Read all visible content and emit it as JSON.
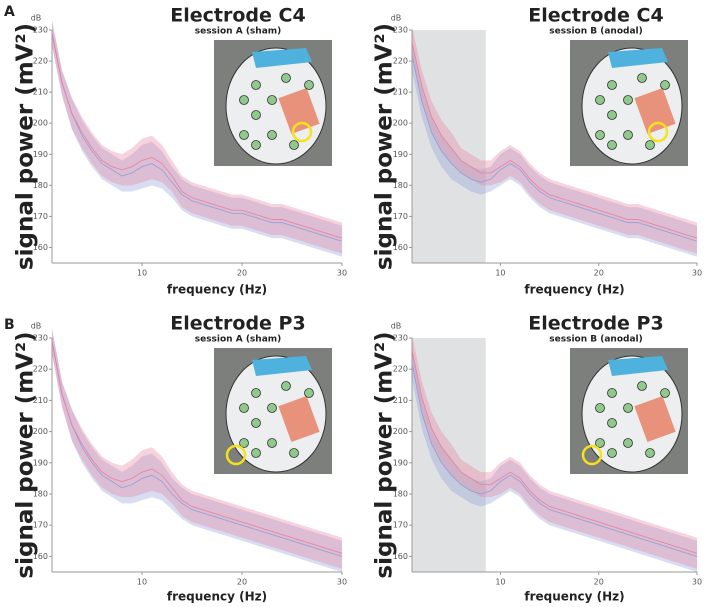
{
  "panels": [
    "A",
    "B"
  ],
  "chart_data": [
    {
      "type": "line",
      "title": "Electrode C4",
      "subtitle": "session A (sham)",
      "ylabel": "signal power (mV²)",
      "yunit": "dB",
      "xlabel": "frequency (Hz)",
      "x": [
        1,
        2,
        3,
        4,
        5,
        6,
        7,
        8,
        9,
        10,
        11,
        12,
        13,
        14,
        15,
        16,
        17,
        18,
        19,
        20,
        21,
        22,
        23,
        24,
        25,
        26,
        27,
        28,
        29,
        30
      ],
      "xlim": [
        1,
        30
      ],
      "xticks": [
        10,
        20,
        30
      ],
      "ylim": [
        155,
        230
      ],
      "yticks": [
        160,
        170,
        180,
        190,
        200,
        210,
        220,
        230
      ],
      "series": [
        {
          "color": "#8f9fd6",
          "values": [
            229,
            213,
            203,
            196,
            191,
            187,
            185,
            183,
            184,
            186,
            187,
            185,
            181,
            177,
            175,
            174,
            173,
            172,
            171,
            171,
            170,
            169,
            168,
            168,
            167,
            166,
            165,
            164,
            163,
            162
          ],
          "errors": [
            4,
            4,
            5,
            5,
            5,
            5,
            5,
            5,
            6,
            7,
            7,
            6,
            5,
            5,
            5,
            5,
            5,
            5,
            5,
            5,
            5,
            5,
            5,
            5,
            5,
            5,
            5,
            5,
            5,
            5
          ]
        },
        {
          "color": "#e8809e",
          "values": [
            229,
            213,
            203,
            197,
            192,
            188,
            186,
            185,
            186,
            188,
            189,
            187,
            183,
            178,
            176,
            175,
            174,
            173,
            172,
            172,
            171,
            170,
            169,
            169,
            168,
            167,
            166,
            165,
            164,
            163
          ],
          "errors": [
            4,
            4,
            5,
            5,
            5,
            5,
            5,
            5,
            6,
            7,
            7,
            6,
            5,
            5,
            5,
            5,
            5,
            5,
            5,
            5,
            5,
            5,
            5,
            5,
            5,
            5,
            5,
            5,
            5,
            5
          ]
        }
      ]
    },
    {
      "type": "line",
      "title": "Electrode C4",
      "subtitle": "session B (anodal)",
      "ylabel": "signal power (mV²)",
      "yunit": "dB",
      "xlabel": "frequency (Hz)",
      "x": [
        1,
        2,
        3,
        4,
        5,
        6,
        7,
        8,
        9,
        10,
        11,
        12,
        13,
        14,
        15,
        16,
        17,
        18,
        19,
        20,
        21,
        22,
        23,
        24,
        25,
        26,
        27,
        28,
        29,
        30
      ],
      "xlim": [
        1,
        30
      ],
      "xticks": [
        10,
        20,
        30
      ],
      "ylim": [
        155,
        230
      ],
      "yticks": [
        160,
        170,
        180,
        190,
        200,
        210,
        220,
        230
      ],
      "shaded": [
        1,
        8.5
      ],
      "series": [
        {
          "color": "#8f9fd6",
          "values": [
            222,
            207,
            197,
            191,
            187,
            184,
            182,
            181,
            182,
            185,
            187,
            185,
            181,
            178,
            176,
            175,
            174,
            173,
            172,
            171,
            170,
            169,
            168,
            168,
            167,
            166,
            165,
            164,
            163,
            162
          ],
          "errors": [
            5,
            5,
            5,
            5,
            5,
            4,
            4,
            4,
            4,
            5,
            5,
            5,
            5,
            5,
            5,
            5,
            5,
            5,
            5,
            5,
            5,
            5,
            5,
            5,
            5,
            5,
            5,
            5,
            5,
            5
          ]
        },
        {
          "color": "#e8809e",
          "values": [
            226,
            212,
            202,
            196,
            192,
            188,
            186,
            184,
            184,
            186,
            188,
            186,
            182,
            179,
            177,
            176,
            175,
            174,
            173,
            172,
            171,
            170,
            169,
            169,
            168,
            167,
            166,
            165,
            164,
            163
          ],
          "errors": [
            5,
            5,
            5,
            5,
            5,
            4,
            4,
            4,
            4,
            5,
            5,
            5,
            5,
            5,
            5,
            5,
            5,
            5,
            5,
            5,
            5,
            5,
            5,
            5,
            5,
            5,
            5,
            5,
            5,
            5
          ]
        }
      ]
    },
    {
      "type": "line",
      "title": "Electrode P3",
      "subtitle": "session A (sham)",
      "ylabel": "signal power (mV²)",
      "yunit": "dB",
      "xlabel": "frequency (Hz)",
      "x": [
        1,
        2,
        3,
        4,
        5,
        6,
        7,
        8,
        9,
        10,
        11,
        12,
        13,
        14,
        15,
        16,
        17,
        18,
        19,
        20,
        21,
        22,
        23,
        24,
        25,
        26,
        27,
        28,
        29,
        30
      ],
      "xlim": [
        1,
        30
      ],
      "xticks": [
        10,
        20,
        30
      ],
      "ylim": [
        155,
        230
      ],
      "yticks": [
        160,
        170,
        180,
        190,
        200,
        210,
        220,
        230
      ],
      "series": [
        {
          "color": "#8f9fd6",
          "values": [
            229,
            212,
            202,
            195,
            190,
            186,
            184,
            182,
            183,
            185,
            186,
            184,
            180,
            177,
            175,
            174,
            173,
            172,
            171,
            170,
            169,
            168,
            167,
            166,
            165,
            164,
            163,
            162,
            161,
            160
          ],
          "errors": [
            4,
            4,
            5,
            5,
            5,
            5,
            5,
            5,
            6,
            7,
            7,
            6,
            5,
            5,
            5,
            5,
            5,
            5,
            5,
            5,
            5,
            5,
            5,
            5,
            5,
            5,
            5,
            5,
            5,
            5
          ]
        },
        {
          "color": "#e8809e",
          "values": [
            229,
            212,
            202,
            196,
            191,
            187,
            185,
            184,
            185,
            187,
            188,
            186,
            182,
            178,
            176,
            175,
            174,
            173,
            172,
            171,
            170,
            169,
            168,
            167,
            166,
            165,
            164,
            163,
            162,
            161
          ],
          "errors": [
            4,
            4,
            5,
            5,
            5,
            5,
            5,
            5,
            6,
            7,
            7,
            6,
            5,
            5,
            5,
            5,
            5,
            5,
            5,
            5,
            5,
            5,
            5,
            5,
            5,
            5,
            5,
            5,
            5,
            5
          ]
        }
      ]
    },
    {
      "type": "line",
      "title": "Electrode P3",
      "subtitle": "session B (anodal)",
      "ylabel": "signal power (mV²)",
      "yunit": "dB",
      "xlabel": "frequency (Hz)",
      "x": [
        1,
        2,
        3,
        4,
        5,
        6,
        7,
        8,
        9,
        10,
        11,
        12,
        13,
        14,
        15,
        16,
        17,
        18,
        19,
        20,
        21,
        22,
        23,
        24,
        25,
        26,
        27,
        28,
        29,
        30
      ],
      "xlim": [
        1,
        30
      ],
      "xticks": [
        10,
        20,
        30
      ],
      "ylim": [
        155,
        230
      ],
      "yticks": [
        160,
        170,
        180,
        190,
        200,
        210,
        220,
        230
      ],
      "shaded": [
        1,
        8.5
      ],
      "series": [
        {
          "color": "#8f9fd6",
          "values": [
            222,
            206,
            196,
            190,
            186,
            183,
            181,
            180,
            181,
            184,
            186,
            184,
            180,
            177,
            175,
            174,
            173,
            172,
            171,
            170,
            169,
            168,
            167,
            166,
            165,
            164,
            163,
            162,
            161,
            160
          ],
          "errors": [
            5,
            5,
            5,
            5,
            5,
            4,
            4,
            4,
            4,
            5,
            5,
            5,
            5,
            5,
            5,
            5,
            5,
            5,
            5,
            5,
            5,
            5,
            5,
            5,
            5,
            5,
            5,
            5,
            5,
            5
          ]
        },
        {
          "color": "#e8809e",
          "values": [
            226,
            211,
            201,
            195,
            191,
            187,
            185,
            183,
            183,
            185,
            187,
            185,
            181,
            178,
            176,
            175,
            174,
            173,
            172,
            171,
            170,
            169,
            168,
            167,
            166,
            165,
            164,
            163,
            162,
            161
          ],
          "errors": [
            5,
            5,
            5,
            5,
            5,
            4,
            4,
            4,
            4,
            5,
            5,
            5,
            5,
            5,
            5,
            5,
            5,
            5,
            5,
            5,
            5,
            5,
            5,
            5,
            5,
            5,
            5,
            5,
            5,
            5
          ]
        }
      ]
    }
  ]
}
